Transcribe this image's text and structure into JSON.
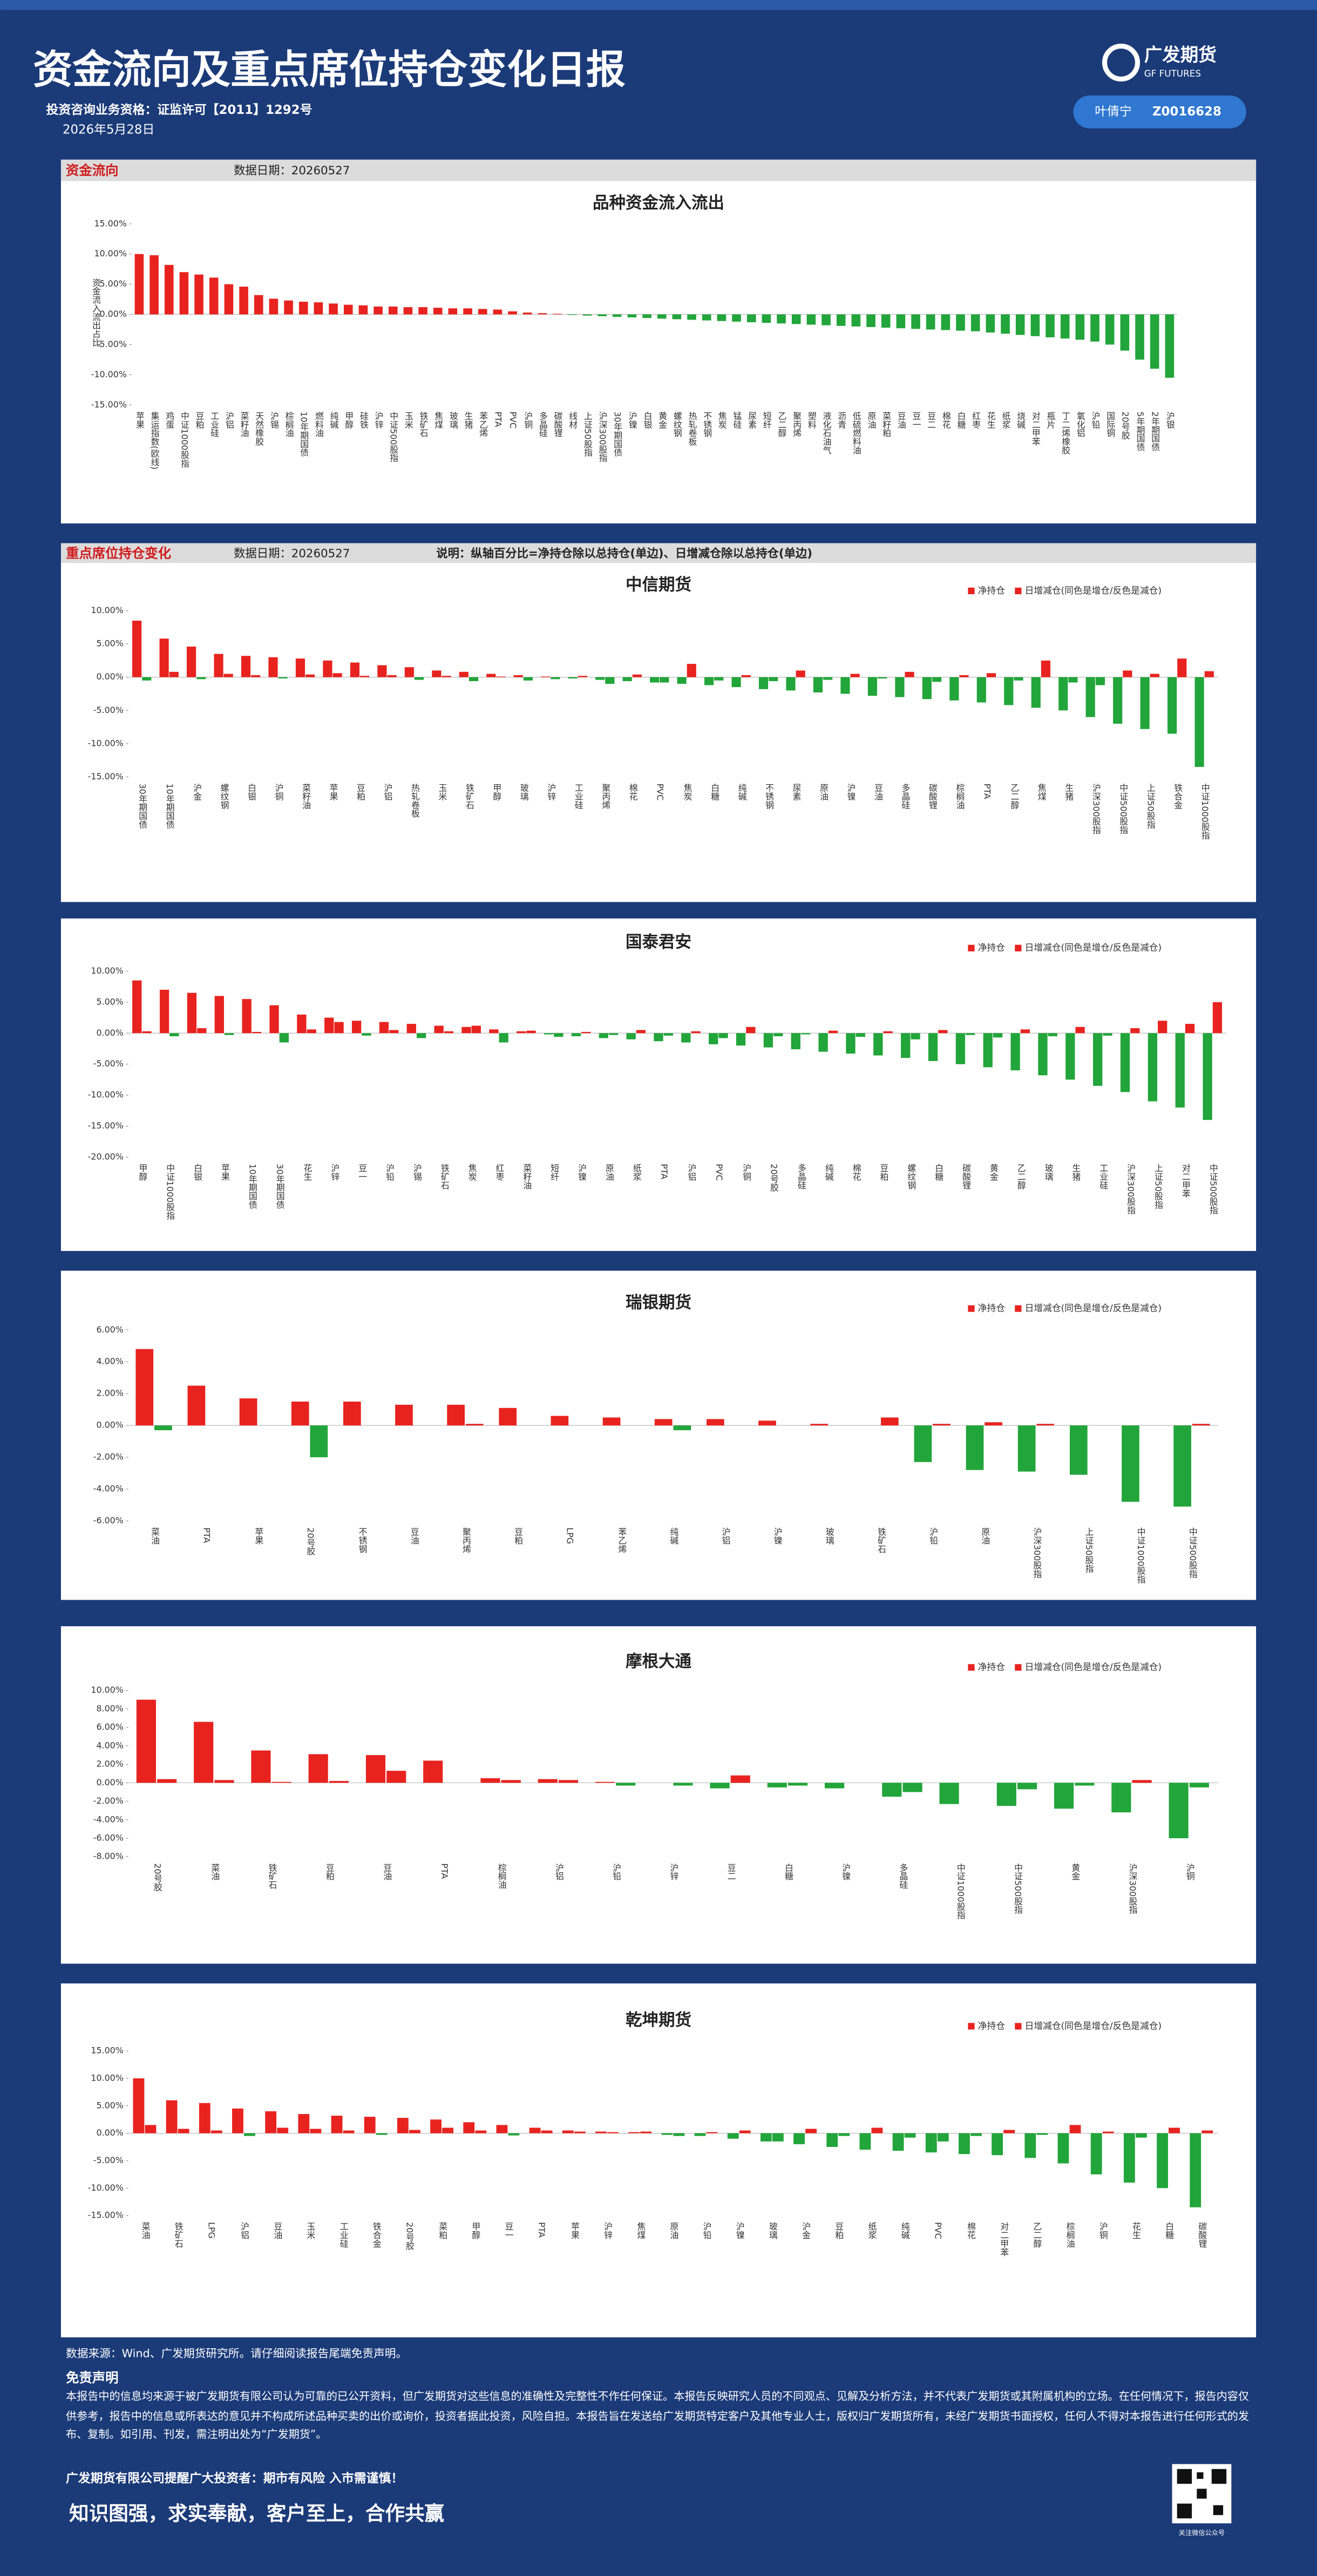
{
  "header": {
    "title": "资金流向及重点席位持仓变化日报",
    "license": "投资咨询业务资格：证监许可【2011】1292号",
    "date": "2026年5月28日",
    "logo_cn": "广发期货",
    "logo_en": "GF FUTURES",
    "analyst": "叶倩宁",
    "analyst_id": "Z0016628"
  },
  "sections": {
    "flow_label": "资金流向",
    "flow_date": "数据日期：20260527",
    "pos_label": "重点席位持仓变化",
    "pos_date": "数据日期：20260527",
    "pos_note": "说明：纵轴百分比=净持仓除以总持仓(单边)、日增减仓除以总持仓(单边)"
  },
  "chart_data": [
    {
      "type": "bar",
      "title": "品种资金流入流出",
      "ylabel": "资金流入流出占比",
      "colors": {
        "positive": "#e8231f",
        "negative": "#22a53a"
      },
      "categories": [
        "苹果",
        "集运指数(欧线)",
        "鸡蛋",
        "中证1000股指",
        "豆粕",
        "工业硅",
        "沪铝",
        "菜籽油",
        "天然橡胶",
        "沪锡",
        "棕榈油",
        "10年期国债",
        "燃料油",
        "纯碱",
        "甲醇",
        "硅铁",
        "沪锌",
        "中证500股指",
        "玉米",
        "铁矿石",
        "焦煤",
        "玻璃",
        "生猪",
        "苯乙烯",
        "PTA",
        "PVC",
        "沪铜",
        "多晶硅",
        "碳酸锂",
        "线材",
        "上证50股指",
        "沪深300股指",
        "30年期国债",
        "沪镍",
        "白银",
        "黄金",
        "螺纹钢",
        "热轧卷板",
        "不锈钢",
        "焦炭",
        "锰硅",
        "尿素",
        "短纤",
        "乙二醇",
        "聚丙烯",
        "塑料",
        "液化石油气",
        "沥青",
        "低硫燃料油",
        "原油",
        "菜籽粕",
        "豆油",
        "豆一",
        "豆二",
        "棉花",
        "白糖",
        "红枣",
        "花生",
        "纸浆",
        "烧碱",
        "对二甲苯",
        "瓶片",
        "丁二烯橡胶",
        "氧化铝",
        "沪铅",
        "国际铜",
        "20号胶",
        "5年期国债",
        "2年期国债",
        "沪银"
      ],
      "values": [
        10.0,
        9.8,
        8.2,
        7.0,
        6.6,
        6.1,
        5.0,
        4.6,
        3.2,
        2.6,
        2.3,
        2.1,
        2.0,
        1.8,
        1.6,
        1.5,
        1.3,
        1.3,
        1.2,
        1.2,
        1.1,
        1.0,
        1.0,
        0.9,
        0.8,
        0.5,
        0.3,
        0.2,
        0.1,
        -0.1,
        -0.2,
        -0.3,
        -0.4,
        -0.5,
        -0.6,
        -0.7,
        -0.8,
        -0.9,
        -1.0,
        -1.1,
        -1.2,
        -1.3,
        -1.4,
        -1.5,
        -1.6,
        -1.7,
        -1.8,
        -1.9,
        -2.0,
        -2.1,
        -2.2,
        -2.3,
        -2.4,
        -2.5,
        -2.6,
        -2.7,
        -2.8,
        -3.0,
        -3.2,
        -3.4,
        -3.6,
        -3.8,
        -4.0,
        -4.2,
        -4.5,
        -5.0,
        -6.0,
        -7.5,
        -9.0,
        -10.5
      ],
      "ylim": [
        -15,
        15
      ],
      "yticks": [
        {
          "value": 15,
          "label": "15.00%"
        },
        {
          "value": 10,
          "label": "10.00%"
        },
        {
          "value": 5,
          "label": "5.00%"
        },
        {
          "value": 0,
          "label": "0.00%"
        },
        {
          "value": -5,
          "label": "-5.00%"
        },
        {
          "value": -10,
          "label": "-10.00%"
        },
        {
          "value": -15,
          "label": "-15.00%"
        }
      ]
    },
    {
      "type": "grouped_bar",
      "title": "中信期货",
      "colors": {
        "positive": "#e8231f",
        "negative": "#22a53a"
      },
      "categories": [
        "30年期国债",
        "10年期国债",
        "沪金",
        "螺纹钢",
        "白银",
        "沪铜",
        "菜籽油",
        "苹果",
        "豆粕",
        "沪铝",
        "热轧卷板",
        "玉米",
        "铁矿石",
        "甲醇",
        "玻璃",
        "沪锌",
        "工业硅",
        "聚丙烯",
        "棉花",
        "PVC",
        "焦炭",
        "白糖",
        "纯碱",
        "不锈钢",
        "尿素",
        "原油",
        "沪镍",
        "豆油",
        "多晶硅",
        "碳酸锂",
        "棕榈油",
        "PTA",
        "乙二醇",
        "焦煤",
        "生猪",
        "沪深300股指",
        "中证500股指",
        "上证50股指",
        "铁合金",
        "中证1000股指"
      ],
      "series": [
        {
          "name": "净持仓",
          "values": [
            8.5,
            5.8,
            4.6,
            3.5,
            3.2,
            3.0,
            2.8,
            2.5,
            2.2,
            1.8,
            1.5,
            1.0,
            0.8,
            0.5,
            0.3,
            0.1,
            -0.2,
            -0.4,
            -0.6,
            -0.8,
            -1.0,
            -1.2,
            -1.5,
            -1.8,
            -2.0,
            -2.3,
            -2.5,
            -2.8,
            -3.0,
            -3.3,
            -3.5,
            -3.8,
            -4.2,
            -4.6,
            -5.0,
            -6.0,
            -7.0,
            -7.8,
            -8.5,
            -13.5
          ]
        },
        {
          "name": "日增减仓(同色是增仓/反色是减仓)",
          "values": [
            -0.5,
            0.8,
            -0.3,
            0.5,
            0.3,
            -0.2,
            0.4,
            0.6,
            0.2,
            0.3,
            -0.4,
            0.2,
            -0.6,
            0.1,
            -0.5,
            -0.3,
            0.2,
            -1.0,
            0.4,
            -0.8,
            2.0,
            -0.5,
            0.3,
            -0.6,
            1.0,
            -0.4,
            0.5,
            -0.2,
            0.8,
            -0.7,
            0.3,
            0.6,
            -0.5,
            2.5,
            -0.8,
            -1.2,
            1.0,
            0.5,
            2.8,
            0.9
          ]
        }
      ],
      "ylim": [
        -15,
        10
      ],
      "yticks": [
        {
          "value": 10,
          "label": "10.00%"
        },
        {
          "value": 5,
          "label": "5.00%"
        },
        {
          "value": 0,
          "label": "0.00%"
        },
        {
          "value": -5,
          "label": "-5.00%"
        },
        {
          "value": -10,
          "label": "-10.00%"
        },
        {
          "value": -15,
          "label": "-15.00%"
        }
      ]
    },
    {
      "type": "grouped_bar",
      "title": "国泰君安",
      "colors": {
        "positive": "#e8231f",
        "negative": "#22a53a"
      },
      "categories": [
        "甲醇",
        "中证1000股指",
        "白银",
        "苹果",
        "10年期国债",
        "30年期国债",
        "花生",
        "沪锌",
        "豆一",
        "沪铅",
        "沪锡",
        "铁矿石",
        "焦炭",
        "红枣",
        "菜籽油",
        "短纤",
        "沪镍",
        "原油",
        "纸浆",
        "PTA",
        "沪铝",
        "PVC",
        "沪铜",
        "20号胶",
        "多晶硅",
        "纯碱",
        "棉花",
        "豆粕",
        "螺纹钢",
        "白糖",
        "碳酸锂",
        "黄金",
        "乙二醇",
        "玻璃",
        "生猪",
        "工业硅",
        "沪深300股指",
        "上证50股指",
        "对二甲苯",
        "中证500股指"
      ],
      "series": [
        {
          "name": "净持仓",
          "values": [
            8.5,
            7.0,
            6.5,
            6.0,
            5.5,
            4.5,
            3.0,
            2.5,
            2.0,
            1.8,
            1.5,
            1.2,
            1.0,
            0.6,
            0.3,
            -0.2,
            -0.5,
            -0.8,
            -1.0,
            -1.3,
            -1.5,
            -1.8,
            -2.0,
            -2.3,
            -2.6,
            -3.0,
            -3.3,
            -3.6,
            -4.0,
            -4.5,
            -5.0,
            -5.5,
            -6.0,
            -6.8,
            -7.5,
            -8.5,
            -9.5,
            -11.0,
            -12.0,
            -14.0
          ]
        },
        {
          "name": "日增减仓(同色是增仓/反色是减仓)",
          "values": [
            0.3,
            -0.5,
            0.8,
            -0.3,
            0.2,
            -1.5,
            0.6,
            1.8,
            -0.4,
            0.5,
            -0.8,
            0.3,
            1.2,
            -1.5,
            0.4,
            -0.6,
            0.2,
            -0.3,
            0.5,
            -0.4,
            0.3,
            -0.8,
            1.0,
            -0.5,
            -0.2,
            0.4,
            -0.6,
            0.3,
            -1.0,
            0.5,
            -0.3,
            -0.7,
            0.6,
            -0.5,
            1.0,
            -0.4,
            0.8,
            2.0,
            1.5,
            5.0
          ]
        }
      ],
      "ylim": [
        -20,
        10
      ],
      "yticks": [
        {
          "value": 10,
          "label": "10.00%"
        },
        {
          "value": 5,
          "label": "5.00%"
        },
        {
          "value": 0,
          "label": "0.00%"
        },
        {
          "value": -5,
          "label": "-5.00%"
        },
        {
          "value": -10,
          "label": "-10.00%"
        },
        {
          "value": -15,
          "label": "-15.00%"
        },
        {
          "value": -20,
          "label": "-20.00%"
        }
      ]
    },
    {
      "type": "grouped_bar",
      "title": "瑞银期货",
      "colors": {
        "positive": "#e8231f",
        "negative": "#22a53a"
      },
      "categories": [
        "菜油",
        "PTA",
        "苹果",
        "20号胶",
        "不锈钢",
        "豆油",
        "聚丙烯",
        "豆粕",
        "LPG",
        "苯乙烯",
        "纯碱",
        "沪铝",
        "沪镍",
        "玻璃",
        "铁矿石",
        "沪铅",
        "原油",
        "沪深300股指",
        "上证50股指",
        "中证1000股指",
        "中证500股指"
      ],
      "series": [
        {
          "name": "净持仓",
          "values": [
            4.8,
            2.5,
            1.7,
            1.5,
            1.5,
            1.3,
            1.3,
            1.1,
            0.6,
            0.5,
            0.4,
            0.4,
            0.3,
            0.1,
            0,
            -2.3,
            -2.8,
            -2.9,
            -3.1,
            -4.8,
            -5.1
          ]
        },
        {
          "name": "日增减仓(同色是增仓/反色是减仓)",
          "values": [
            -0.3,
            0,
            0,
            -2.0,
            0,
            0,
            0.1,
            0,
            0,
            0,
            -0.3,
            0,
            0,
            0,
            0.5,
            0.1,
            0.2,
            0.1,
            0,
            0,
            0.1
          ]
        }
      ],
      "ylim": [
        -6,
        6
      ],
      "yticks": [
        {
          "value": 6,
          "label": "6.00%"
        },
        {
          "value": 4,
          "label": "4.00%"
        },
        {
          "value": 2,
          "label": "2.00%"
        },
        {
          "value": 0,
          "label": "0.00%"
        },
        {
          "value": -2,
          "label": "-2.00%"
        },
        {
          "value": -4,
          "label": "-4.00%"
        },
        {
          "value": -6,
          "label": "-6.00%"
        }
      ]
    },
    {
      "type": "grouped_bar",
      "title": "摩根大通",
      "colors": {
        "positive": "#e8231f",
        "negative": "#22a53a"
      },
      "categories": [
        "20号胶",
        "菜油",
        "铁矿石",
        "豆粕",
        "豆油",
        "PTA",
        "棕榈油",
        "沪铝",
        "沪铅",
        "沪锌",
        "豆二",
        "白糖",
        "沪镍",
        "多晶硅",
        "中证1000股指",
        "中证500股指",
        "黄金",
        "沪深300股指",
        "沪铜"
      ],
      "series": [
        {
          "name": "净持仓",
          "values": [
            9.0,
            6.6,
            3.5,
            3.1,
            3.0,
            2.4,
            0.5,
            0.4,
            0.1,
            0,
            -0.6,
            -0.5,
            -0.6,
            -1.5,
            -2.3,
            -2.5,
            -2.8,
            -3.2,
            -6.0
          ]
        },
        {
          "name": "日增减仓(同色是增仓/反色是减仓)",
          "values": [
            0.4,
            0.3,
            0.1,
            0.2,
            1.3,
            0,
            0.3,
            0.3,
            -0.3,
            -0.3,
            0.8,
            -0.3,
            0,
            -1.0,
            0,
            -0.7,
            -0.3,
            0.3,
            -0.5
          ]
        }
      ],
      "ylim": [
        -8,
        10
      ],
      "yticks": [
        {
          "value": 10,
          "label": "10.00%"
        },
        {
          "value": 8,
          "label": "8.00%"
        },
        {
          "value": 6,
          "label": "6.00%"
        },
        {
          "value": 4,
          "label": "4.00%"
        },
        {
          "value": 2,
          "label": "2.00%"
        },
        {
          "value": 0,
          "label": "0.00%"
        },
        {
          "value": -2,
          "label": "-2.00%"
        },
        {
          "value": -4,
          "label": "-4.00%"
        },
        {
          "value": -6,
          "label": "-6.00%"
        },
        {
          "value": -8,
          "label": "-8.00%"
        }
      ]
    },
    {
      "type": "grouped_bar",
      "title": "乾坤期货",
      "colors": {
        "positive": "#e8231f",
        "negative": "#22a53a"
      },
      "categories": [
        "菜油",
        "铁矿石",
        "LPG",
        "沪铝",
        "豆油",
        "玉米",
        "工业硅",
        "铁合金",
        "20号胶",
        "菜粕",
        "甲醇",
        "豆一",
        "PTA",
        "苹果",
        "沪锌",
        "焦煤",
        "原油",
        "沪铅",
        "沪镍",
        "玻璃",
        "沪金",
        "豆粕",
        "纸浆",
        "纯碱",
        "PVC",
        "棉花",
        "对二甲苯",
        "乙二醇",
        "棕榈油",
        "沪铜",
        "花生",
        "白糖",
        "碳酸锂"
      ],
      "series": [
        {
          "name": "净持仓",
          "values": [
            10.0,
            6.0,
            5.5,
            4.5,
            4.0,
            3.5,
            3.2,
            3.0,
            2.8,
            2.5,
            2.0,
            1.5,
            1.0,
            0.5,
            0.3,
            0.2,
            -0.3,
            -0.5,
            -1.0,
            -1.5,
            -2.0,
            -2.5,
            -3.0,
            -3.2,
            -3.5,
            -3.8,
            -4.0,
            -4.5,
            -5.5,
            -7.5,
            -9.0,
            -10.0,
            -13.5
          ]
        },
        {
          "name": "日增减仓(同色是增仓/反色是减仓)",
          "values": [
            1.5,
            0.8,
            0.5,
            -0.5,
            1.0,
            0.8,
            0.5,
            -0.3,
            0.6,
            1.0,
            0.5,
            -0.4,
            0.5,
            0.3,
            0.2,
            0.3,
            -0.5,
            0.2,
            0.5,
            -1.5,
            0.8,
            -0.5,
            1.0,
            -0.8,
            -1.5,
            -0.5,
            0.6,
            -0.3,
            1.5,
            0.3,
            -0.8,
            1.0,
            0.5
          ]
        }
      ],
      "ylim": [
        -15,
        15
      ],
      "yticks": [
        {
          "value": 15,
          "label": "15.00%"
        },
        {
          "value": 10,
          "label": "10.00%"
        },
        {
          "value": 5,
          "label": "5.00%"
        },
        {
          "value": 0,
          "label": "0.00%"
        },
        {
          "value": -5,
          "label": "-5.00%"
        },
        {
          "value": -10,
          "label": "-10.00%"
        },
        {
          "value": -15,
          "label": "-15.00%"
        }
      ]
    }
  ],
  "footer": {
    "source": "数据来源：Wind、广发期货研究所。请仔细阅读报告尾端免责声明。",
    "disclaimer_title": "免责声明",
    "disclaimer": "本报告中的信息均来源于被广发期货有限公司认为可靠的已公开资料，但广发期货对这些信息的准确性及完整性不作任何保证。本报告反映研究人员的不同观点、见解及分析方法，并不代表广发期货或其附属机构的立场。在任何情况下，报告内容仅供参考，报告中的信息或所表达的意见并不构成所述品种买卖的出价或询价，投资者据此投资，风险自担。本报告旨在发送给广发期货特定客户及其他专业人士，版权归广发期货所有，未经广发期货书面授权，任何人不得对本报告进行任何形式的发布、复制。如引用、刊发，需注明出处为“广发期货”。",
    "warning": "广发期货有限公司提醒广大投资者：期市有风险 入市需谨慎！",
    "slogan": "知识图强，求实奉献，客户至上，合作共赢",
    "qr_caption": "关注微信公众号"
  }
}
